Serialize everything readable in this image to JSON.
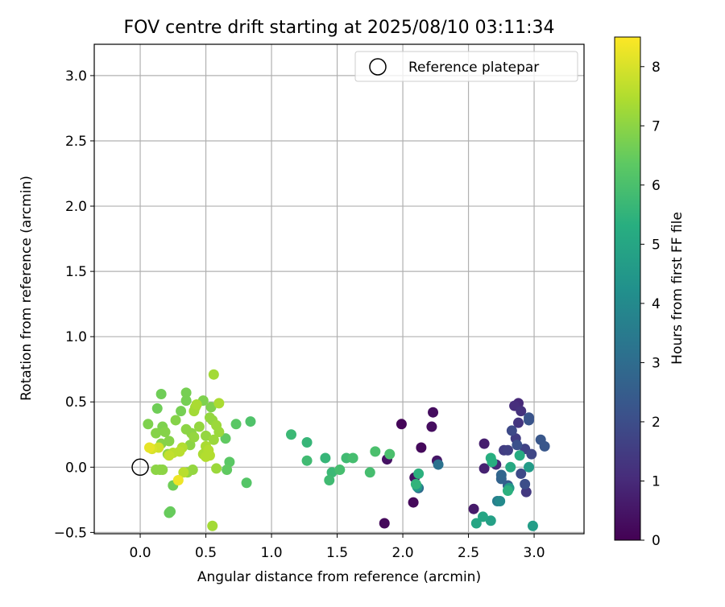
{
  "chart_data": {
    "type": "scatter",
    "title": "FOV centre drift starting at 2025/08/10 03:11:34",
    "xlabel": "Angular distance from reference (arcmin)",
    "ylabel": "Rotation from reference (arcmin)",
    "xlim": [
      -0.35,
      3.38
    ],
    "ylim": [
      -0.51,
      3.24
    ],
    "xticks": [
      0.0,
      0.5,
      1.0,
      1.5,
      2.0,
      2.5,
      3.0
    ],
    "yticks": [
      -0.5,
      0.0,
      0.5,
      1.0,
      1.5,
      2.0,
      2.5,
      3.0
    ],
    "xtick_labels": [
      "0.0",
      "0.5",
      "1.0",
      "1.5",
      "2.0",
      "2.5",
      "3.0"
    ],
    "ytick_labels": [
      "−0.5",
      "0.0",
      "0.5",
      "1.0",
      "1.5",
      "2.0",
      "2.5",
      "3.0"
    ],
    "grid": true,
    "legend": {
      "position": "upper right",
      "entries": [
        "Reference platepar"
      ]
    },
    "reference_point": {
      "x": 0.0,
      "y": 0.0
    },
    "colorbar": {
      "label": "Hours from first FF file",
      "colormap": "viridis",
      "min": 0,
      "max": 8.5,
      "ticks": [
        0,
        1,
        2,
        3,
        4,
        5,
        6,
        7,
        8
      ],
      "tick_labels": [
        "0",
        "1",
        "2",
        "3",
        "4",
        "5",
        "6",
        "7",
        "8"
      ]
    },
    "points": [
      {
        "x": 1.99,
        "y": 0.33,
        "t": 0.1
      },
      {
        "x": 1.86,
        "y": -0.43,
        "t": 0.2
      },
      {
        "x": 2.08,
        "y": -0.27,
        "t": 0.2
      },
      {
        "x": 2.14,
        "y": 0.15,
        "t": 0.2
      },
      {
        "x": 2.22,
        "y": 0.31,
        "t": 0.3
      },
      {
        "x": 2.23,
        "y": 0.42,
        "t": 0.3
      },
      {
        "x": 1.88,
        "y": 0.06,
        "t": 0.4
      },
      {
        "x": 2.09,
        "y": -0.08,
        "t": 0.4
      },
      {
        "x": 2.26,
        "y": 0.05,
        "t": 0.5
      },
      {
        "x": 2.54,
        "y": -0.32,
        "t": 0.6
      },
      {
        "x": 2.62,
        "y": 0.18,
        "t": 0.7
      },
      {
        "x": 2.62,
        "y": -0.01,
        "t": 0.8
      },
      {
        "x": 2.71,
        "y": 0.02,
        "t": 1.0
      },
      {
        "x": 2.88,
        "y": 0.49,
        "t": 1.0
      },
      {
        "x": 2.85,
        "y": 0.47,
        "t": 1.1
      },
      {
        "x": 2.9,
        "y": 0.43,
        "t": 1.2
      },
      {
        "x": 2.88,
        "y": 0.34,
        "t": 1.3
      },
      {
        "x": 2.94,
        "y": -0.19,
        "t": 1.4
      },
      {
        "x": 2.86,
        "y": 0.22,
        "t": 1.5
      },
      {
        "x": 2.77,
        "y": 0.13,
        "t": 1.5
      },
      {
        "x": 2.8,
        "y": 0.13,
        "t": 1.6
      },
      {
        "x": 2.93,
        "y": 0.14,
        "t": 1.7
      },
      {
        "x": 2.98,
        "y": 0.1,
        "t": 1.8
      },
      {
        "x": 2.83,
        "y": 0.28,
        "t": 1.9
      },
      {
        "x": 2.9,
        "y": -0.05,
        "t": 1.9
      },
      {
        "x": 2.93,
        "y": -0.13,
        "t": 2.0
      },
      {
        "x": 2.87,
        "y": 0.17,
        "t": 2.1
      },
      {
        "x": 2.96,
        "y": 0.36,
        "t": 2.2
      },
      {
        "x": 2.96,
        "y": 0.38,
        "t": 2.2
      },
      {
        "x": 3.05,
        "y": 0.21,
        "t": 2.3
      },
      {
        "x": 3.08,
        "y": 0.16,
        "t": 2.3
      },
      {
        "x": 2.8,
        "y": -0.14,
        "t": 2.5
      },
      {
        "x": 2.75,
        "y": -0.09,
        "t": 2.7
      },
      {
        "x": 2.75,
        "y": -0.06,
        "t": 2.8
      },
      {
        "x": 2.12,
        "y": -0.16,
        "t": 3.0
      },
      {
        "x": 2.27,
        "y": 0.02,
        "t": 3.2
      },
      {
        "x": 2.72,
        "y": -0.26,
        "t": 3.6
      },
      {
        "x": 2.74,
        "y": -0.26,
        "t": 4.0
      },
      {
        "x": 2.81,
        "y": -0.16,
        "t": 4.5
      },
      {
        "x": 2.11,
        "y": -0.15,
        "t": 4.5
      },
      {
        "x": 2.96,
        "y": 0.0,
        "t": 4.6
      },
      {
        "x": 2.99,
        "y": -0.45,
        "t": 4.7
      },
      {
        "x": 2.67,
        "y": -0.41,
        "t": 4.8
      },
      {
        "x": 2.61,
        "y": -0.38,
        "t": 5.0
      },
      {
        "x": 2.56,
        "y": -0.43,
        "t": 5.0
      },
      {
        "x": 2.82,
        "y": 0.0,
        "t": 5.1
      },
      {
        "x": 2.89,
        "y": 0.09,
        "t": 5.2
      },
      {
        "x": 2.67,
        "y": 0.07,
        "t": 5.3
      },
      {
        "x": 2.68,
        "y": 0.04,
        "t": 5.3
      },
      {
        "x": 2.8,
        "y": -0.18,
        "t": 5.4
      },
      {
        "x": 2.12,
        "y": -0.05,
        "t": 5.4
      },
      {
        "x": 2.1,
        "y": -0.13,
        "t": 5.5
      },
      {
        "x": 1.27,
        "y": 0.19,
        "t": 5.6
      },
      {
        "x": 1.15,
        "y": 0.25,
        "t": 5.7
      },
      {
        "x": 1.27,
        "y": 0.05,
        "t": 5.8
      },
      {
        "x": 1.41,
        "y": 0.07,
        "t": 5.6
      },
      {
        "x": 1.46,
        "y": -0.04,
        "t": 5.7
      },
      {
        "x": 1.44,
        "y": -0.1,
        "t": 5.8
      },
      {
        "x": 1.52,
        "y": -0.02,
        "t": 5.9
      },
      {
        "x": 1.57,
        "y": 0.07,
        "t": 5.8
      },
      {
        "x": 1.62,
        "y": 0.07,
        "t": 5.9
      },
      {
        "x": 1.75,
        "y": -0.04,
        "t": 5.9
      },
      {
        "x": 1.79,
        "y": 0.12,
        "t": 6.0
      },
      {
        "x": 1.9,
        "y": 0.1,
        "t": 6.0
      },
      {
        "x": 0.84,
        "y": 0.35,
        "t": 6.1
      },
      {
        "x": 0.81,
        "y": -0.12,
        "t": 6.2
      },
      {
        "x": 0.73,
        "y": 0.33,
        "t": 6.3
      },
      {
        "x": 0.68,
        "y": 0.04,
        "t": 6.3
      },
      {
        "x": 0.65,
        "y": 0.22,
        "t": 6.4
      },
      {
        "x": 0.66,
        "y": -0.02,
        "t": 6.4
      },
      {
        "x": 0.22,
        "y": -0.35,
        "t": 6.5
      },
      {
        "x": 0.23,
        "y": -0.34,
        "t": 6.5
      },
      {
        "x": 0.25,
        "y": -0.14,
        "t": 6.6
      },
      {
        "x": 0.16,
        "y": 0.56,
        "t": 6.6
      },
      {
        "x": 0.13,
        "y": 0.45,
        "t": 6.6
      },
      {
        "x": 0.35,
        "y": 0.57,
        "t": 6.7
      },
      {
        "x": 0.35,
        "y": 0.51,
        "t": 6.7
      },
      {
        "x": 0.31,
        "y": 0.43,
        "t": 6.7
      },
      {
        "x": 0.48,
        "y": 0.51,
        "t": 6.8
      },
      {
        "x": 0.54,
        "y": 0.46,
        "t": 6.8
      },
      {
        "x": 0.06,
        "y": 0.33,
        "t": 6.8
      },
      {
        "x": 0.17,
        "y": 0.31,
        "t": 6.8
      },
      {
        "x": 0.27,
        "y": 0.36,
        "t": 6.9
      },
      {
        "x": 0.12,
        "y": 0.26,
        "t": 6.9
      },
      {
        "x": 0.16,
        "y": 0.18,
        "t": 6.9
      },
      {
        "x": 0.19,
        "y": 0.27,
        "t": 6.9
      },
      {
        "x": 0.22,
        "y": 0.2,
        "t": 6.9
      },
      {
        "x": 0.12,
        "y": -0.02,
        "t": 7.0
      },
      {
        "x": 0.15,
        "y": -0.02,
        "t": 7.0
      },
      {
        "x": 0.17,
        "y": -0.02,
        "t": 7.0
      },
      {
        "x": 0.21,
        "y": 0.1,
        "t": 7.0
      },
      {
        "x": 0.35,
        "y": 0.29,
        "t": 7.0
      },
      {
        "x": 0.38,
        "y": 0.17,
        "t": 7.0
      },
      {
        "x": 0.39,
        "y": 0.26,
        "t": 7.0
      },
      {
        "x": 0.41,
        "y": 0.23,
        "t": 7.1
      },
      {
        "x": 0.4,
        "y": -0.02,
        "t": 7.1
      },
      {
        "x": 0.36,
        "y": -0.04,
        "t": 7.1
      },
      {
        "x": 0.45,
        "y": 0.31,
        "t": 7.1
      },
      {
        "x": 0.5,
        "y": 0.24,
        "t": 7.1
      },
      {
        "x": 0.53,
        "y": 0.38,
        "t": 7.1
      },
      {
        "x": 0.55,
        "y": 0.36,
        "t": 7.1
      },
      {
        "x": 0.58,
        "y": 0.32,
        "t": 7.2
      },
      {
        "x": 0.56,
        "y": 0.21,
        "t": 7.2
      },
      {
        "x": 0.6,
        "y": 0.27,
        "t": 7.2
      },
      {
        "x": 0.58,
        "y": -0.01,
        "t": 7.2
      },
      {
        "x": 0.56,
        "y": 0.71,
        "t": 7.3
      },
      {
        "x": 0.55,
        "y": -0.45,
        "t": 7.3
      },
      {
        "x": 0.42,
        "y": 0.46,
        "t": 7.3
      },
      {
        "x": 0.41,
        "y": 0.43,
        "t": 7.3
      },
      {
        "x": 0.43,
        "y": 0.48,
        "t": 7.4
      },
      {
        "x": 0.6,
        "y": 0.49,
        "t": 7.4
      },
      {
        "x": 0.5,
        "y": 0.16,
        "t": 7.4
      },
      {
        "x": 0.48,
        "y": 0.1,
        "t": 7.4
      },
      {
        "x": 0.5,
        "y": 0.08,
        "t": 7.5
      },
      {
        "x": 0.52,
        "y": 0.13,
        "t": 7.5
      },
      {
        "x": 0.53,
        "y": 0.09,
        "t": 7.5
      },
      {
        "x": 0.32,
        "y": 0.15,
        "t": 7.5
      },
      {
        "x": 0.3,
        "y": 0.12,
        "t": 7.6
      },
      {
        "x": 0.25,
        "y": 0.11,
        "t": 7.6
      },
      {
        "x": 0.33,
        "y": -0.04,
        "t": 7.6
      },
      {
        "x": 0.22,
        "y": 0.09,
        "t": 7.7
      },
      {
        "x": 0.14,
        "y": 0.15,
        "t": 7.9
      },
      {
        "x": 0.09,
        "y": 0.14,
        "t": 8.0
      },
      {
        "x": 0.07,
        "y": 0.15,
        "t": 8.2
      },
      {
        "x": 0.29,
        "y": -0.1,
        "t": 8.3
      }
    ]
  }
}
